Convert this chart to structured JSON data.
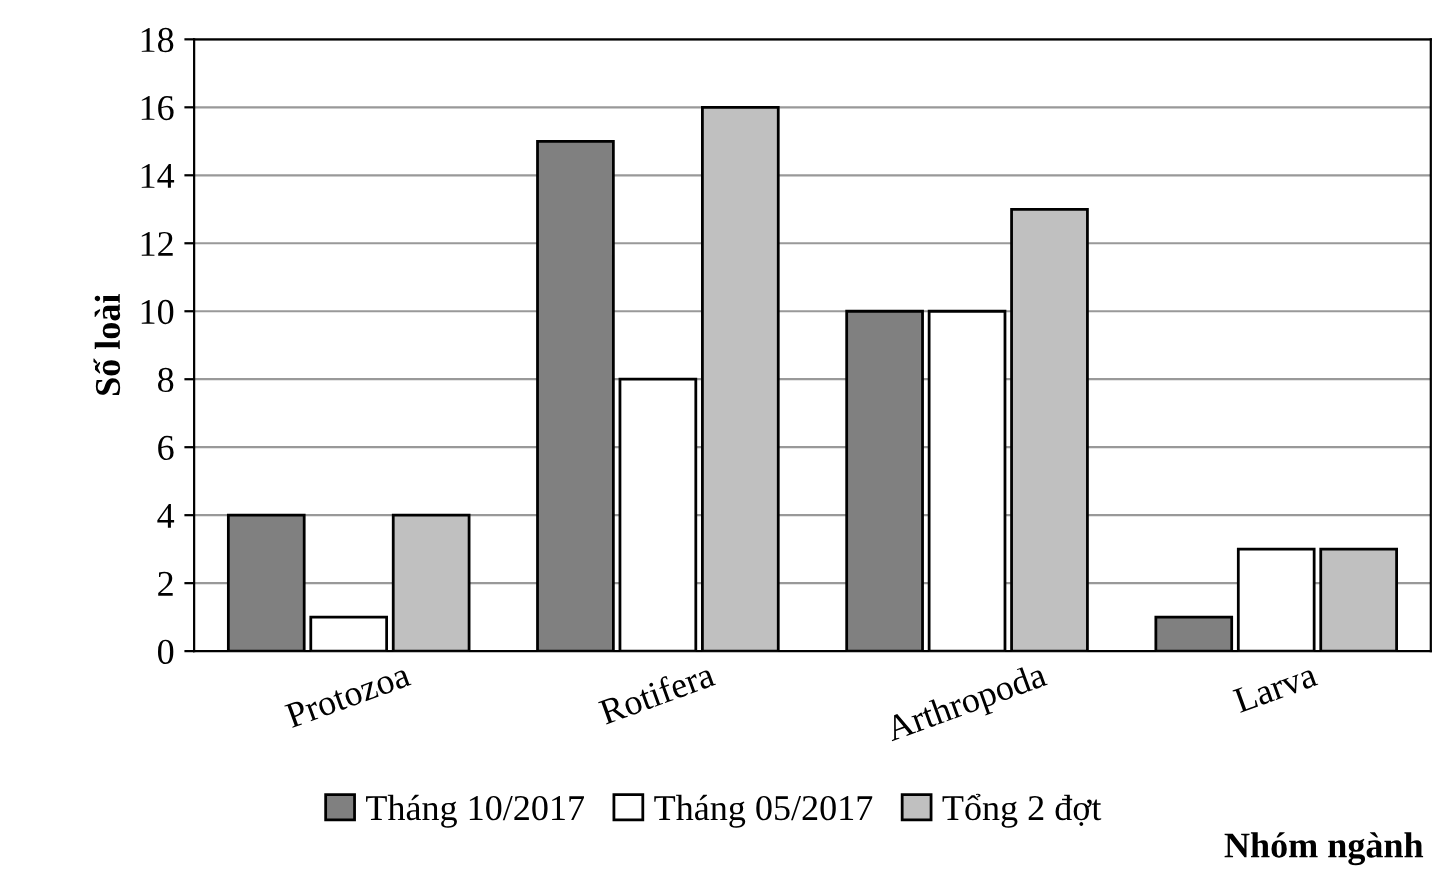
{
  "chart_data": {
    "type": "bar",
    "ylabel": "Số loài",
    "xlabel": "Nhóm ngành",
    "categories": [
      "Protozoa",
      "Rotifera",
      "Arthropoda",
      "Larva"
    ],
    "series": [
      {
        "name": "Tháng 10/2017",
        "color": "#808080",
        "values": [
          4,
          15,
          10,
          1
        ]
      },
      {
        "name": "Tháng 05/2017",
        "color": "#ffffff",
        "values": [
          1,
          8,
          10,
          3
        ]
      },
      {
        "name": "Tổng 2 đợt",
        "color": "#c0c0c0",
        "values": [
          4,
          16,
          13,
          3
        ]
      }
    ],
    "ylim": [
      0,
      18
    ],
    "yticks": [
      0,
      2,
      4,
      6,
      8,
      10,
      12,
      14,
      16,
      18
    ],
    "grid": "y",
    "legend": "bottom"
  }
}
